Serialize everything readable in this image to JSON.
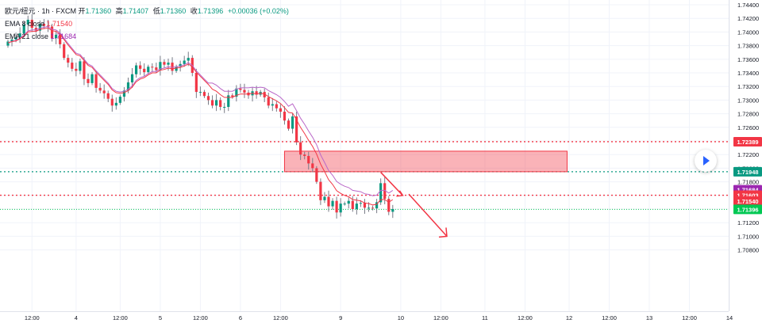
{
  "legend": {
    "symbol": "欧元/纽元 · 1h · FXCM",
    "open_label": "开",
    "open_value": "1.71360",
    "high_label": "高",
    "high_value": "1.71407",
    "low_label": "低",
    "low_value": "1.71360",
    "close_label": "收",
    "close_value": "1.71396",
    "change": "+0.00036 (+0.02%)",
    "ema8_label": "EMA 8 close",
    "ema8_value": "1.71540",
    "ema21_label": "EMA 21 close",
    "ema21_value": "1.71684"
  },
  "play_button": {
    "icon": "play-icon"
  },
  "chart_data": {
    "type": "candlestick",
    "y_axis": {
      "range": [
        1.699,
        1.7447
      ],
      "ticks": [
        "1.70800",
        "1.71000",
        "1.71200",
        "1.71400",
        "1.71600",
        "1.71800",
        "1.72000",
        "1.72200",
        "1.72400",
        "1.72600",
        "1.72800",
        "1.73000",
        "1.73200",
        "1.73400",
        "1.73600",
        "1.73800",
        "1.74000",
        "1.74200",
        "1.74400"
      ]
    },
    "x_axis": {
      "ticks": [
        {
          "bar": 6,
          "label": "12:00"
        },
        {
          "bar": 17,
          "label": "4"
        },
        {
          "bar": 28,
          "label": "12:00"
        },
        {
          "bar": 38,
          "label": "5"
        },
        {
          "bar": 48,
          "label": "12:00"
        },
        {
          "bar": 58,
          "label": "6"
        },
        {
          "bar": 68,
          "label": "12:00"
        },
        {
          "bar": 83,
          "label": "9"
        },
        {
          "bar": 98,
          "label": "10"
        },
        {
          "bar": 108,
          "label": "12:00"
        },
        {
          "bar": 119,
          "label": "11"
        },
        {
          "bar": 129,
          "label": "12:00"
        },
        {
          "bar": 140,
          "label": "12"
        },
        {
          "bar": 150,
          "label": "12:00"
        },
        {
          "bar": 160,
          "label": "13"
        },
        {
          "bar": 170,
          "label": "12:00"
        },
        {
          "bar": 180,
          "label": "14"
        }
      ]
    },
    "colors": {
      "up": "#089981",
      "down": "#f23645",
      "wick": "#787b86",
      "ema8": "#f23645",
      "ema21": "#ba68c8"
    },
    "closes": [
      1.7386,
      1.7389,
      1.7392,
      1.7398,
      1.7411,
      1.7418,
      1.7406,
      1.7402,
      1.7412,
      1.7409,
      1.7408,
      1.7391,
      1.7396,
      1.7382,
      1.7362,
      1.7355,
      1.7346,
      1.7343,
      1.7357,
      1.7331,
      1.7325,
      1.7338,
      1.7318,
      1.7314,
      1.731,
      1.7302,
      1.7292,
      1.7296,
      1.7305,
      1.7314,
      1.7326,
      1.7338,
      1.7351,
      1.7346,
      1.7341,
      1.7349,
      1.7348,
      1.7344,
      1.7356,
      1.7352,
      1.7355,
      1.7343,
      1.7349,
      1.7353,
      1.7358,
      1.7362,
      1.734,
      1.7312,
      1.7312,
      1.7306,
      1.73,
      1.7292,
      1.73,
      1.729,
      1.729,
      1.7307,
      1.7305,
      1.7317,
      1.7315,
      1.7311,
      1.7307,
      1.7313,
      1.7308,
      1.7312,
      1.7304,
      1.7292,
      1.7294,
      1.7288,
      1.7283,
      1.727,
      1.7258,
      1.7276,
      1.7238,
      1.722,
      1.7218,
      1.7207,
      1.72,
      1.718,
      1.7153,
      1.7158,
      1.7144,
      1.7152,
      1.7135,
      1.7148,
      1.7148,
      1.7152,
      1.714,
      1.7148,
      1.7149,
      1.7142,
      1.7142,
      1.7141,
      1.715,
      1.7178,
      1.7155,
      1.7136,
      1.714
    ],
    "ema8_values": [
      1.7384,
      1.7386,
      1.7387,
      1.739,
      1.7394,
      1.74,
      1.7401,
      1.7401,
      1.7404,
      1.7405,
      1.7406,
      1.7402,
      1.7401,
      1.7397,
      1.7389,
      1.7381,
      1.7374,
      1.7367,
      1.7365,
      1.7358,
      1.7351,
      1.7348,
      1.7341,
      1.7335,
      1.7329,
      1.7323,
      1.7315,
      1.7311,
      1.731,
      1.7311,
      1.7314,
      1.7319,
      1.7327,
      1.7331,
      1.7333,
      1.7337,
      1.734,
      1.734,
      1.7344,
      1.7345,
      1.7347,
      1.7346,
      1.7347,
      1.7348,
      1.735,
      1.7353,
      1.7349,
      1.7341,
      1.7335,
      1.7329,
      1.7323,
      1.7316,
      1.7313,
      1.7308,
      1.7304,
      1.7304,
      1.7304,
      1.7307,
      1.7309,
      1.7309,
      1.7309,
      1.731,
      1.7309,
      1.731,
      1.7309,
      1.7305,
      1.7302,
      1.7299,
      1.7295,
      1.7289,
      1.7282,
      1.7281,
      1.7271,
      1.726,
      1.7251,
      1.7241,
      1.7232,
      1.7221,
      1.7206,
      1.7195,
      1.7183,
      1.7176,
      1.7167,
      1.7163,
      1.716,
      1.7158,
      1.7154,
      1.7153,
      1.7152,
      1.7149,
      1.7148,
      1.7146,
      1.7147,
      1.7154,
      1.7154,
      1.715,
      1.7154
    ]
  }
}
